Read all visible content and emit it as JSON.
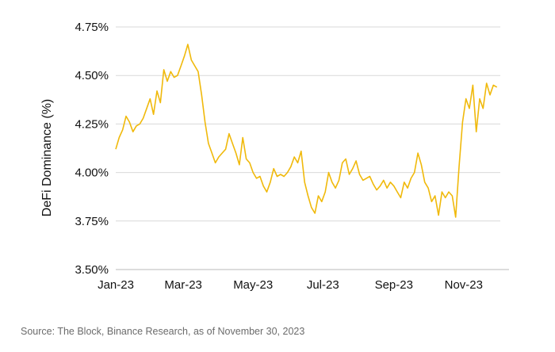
{
  "chart_data": {
    "type": "line",
    "ylabel": "DeFi Dominance (%)",
    "xlabel": "",
    "title": "",
    "ylim": [
      3.5,
      4.75
    ],
    "yticks": [
      "3.50%",
      "3.75%",
      "4.00%",
      "4.25%",
      "4.50%",
      "4.75%"
    ],
    "ytick_values": [
      3.5,
      3.75,
      4.0,
      4.25,
      4.5,
      4.75
    ],
    "xlim": [
      "2023-01-01",
      "2023-12-03"
    ],
    "xticks": [
      "Jan-23",
      "Mar-23",
      "May-23",
      "Jul-23",
      "Sep-23",
      "Nov-23"
    ],
    "xtick_dates": [
      "2023-01-01",
      "2023-03-01",
      "2023-05-01",
      "2023-07-01",
      "2023-09-01",
      "2023-11-01"
    ],
    "grid": "horizontal",
    "legend": "none",
    "series": [
      {
        "color": "#F0B90B",
        "points": [
          [
            "2023-01-01",
            4.12
          ],
          [
            "2023-01-04",
            4.18
          ],
          [
            "2023-01-07",
            4.22
          ],
          [
            "2023-01-10",
            4.29
          ],
          [
            "2023-01-13",
            4.26
          ],
          [
            "2023-01-16",
            4.21
          ],
          [
            "2023-01-19",
            4.24
          ],
          [
            "2023-01-22",
            4.25
          ],
          [
            "2023-01-25",
            4.28
          ],
          [
            "2023-01-28",
            4.33
          ],
          [
            "2023-01-31",
            4.38
          ],
          [
            "2023-02-03",
            4.3
          ],
          [
            "2023-02-06",
            4.42
          ],
          [
            "2023-02-09",
            4.36
          ],
          [
            "2023-02-12",
            4.53
          ],
          [
            "2023-02-15",
            4.47
          ],
          [
            "2023-02-18",
            4.52
          ],
          [
            "2023-02-21",
            4.49
          ],
          [
            "2023-02-24",
            4.5
          ],
          [
            "2023-02-27",
            4.55
          ],
          [
            "2023-03-02",
            4.6
          ],
          [
            "2023-03-05",
            4.66
          ],
          [
            "2023-03-08",
            4.58
          ],
          [
            "2023-03-11",
            4.55
          ],
          [
            "2023-03-14",
            4.52
          ],
          [
            "2023-03-17",
            4.4
          ],
          [
            "2023-03-20",
            4.26
          ],
          [
            "2023-03-23",
            4.15
          ],
          [
            "2023-03-26",
            4.1
          ],
          [
            "2023-03-29",
            4.05
          ],
          [
            "2023-04-01",
            4.08
          ],
          [
            "2023-04-04",
            4.1
          ],
          [
            "2023-04-07",
            4.12
          ],
          [
            "2023-04-10",
            4.2
          ],
          [
            "2023-04-13",
            4.15
          ],
          [
            "2023-04-16",
            4.1
          ],
          [
            "2023-04-19",
            4.04
          ],
          [
            "2023-04-22",
            4.18
          ],
          [
            "2023-04-25",
            4.07
          ],
          [
            "2023-04-28",
            4.05
          ],
          [
            "2023-05-01",
            4.0
          ],
          [
            "2023-05-04",
            3.97
          ],
          [
            "2023-05-07",
            3.98
          ],
          [
            "2023-05-10",
            3.93
          ],
          [
            "2023-05-13",
            3.9
          ],
          [
            "2023-05-16",
            3.95
          ],
          [
            "2023-05-19",
            4.02
          ],
          [
            "2023-05-22",
            3.98
          ],
          [
            "2023-05-25",
            3.99
          ],
          [
            "2023-05-28",
            3.98
          ],
          [
            "2023-05-31",
            4.0
          ],
          [
            "2023-06-03",
            4.03
          ],
          [
            "2023-06-06",
            4.08
          ],
          [
            "2023-06-09",
            4.05
          ],
          [
            "2023-06-12",
            4.11
          ],
          [
            "2023-06-15",
            3.95
          ],
          [
            "2023-06-18",
            3.88
          ],
          [
            "2023-06-21",
            3.82
          ],
          [
            "2023-06-24",
            3.79
          ],
          [
            "2023-06-27",
            3.88
          ],
          [
            "2023-06-30",
            3.85
          ],
          [
            "2023-07-03",
            3.9
          ],
          [
            "2023-07-06",
            4.0
          ],
          [
            "2023-07-09",
            3.95
          ],
          [
            "2023-07-12",
            3.92
          ],
          [
            "2023-07-15",
            3.96
          ],
          [
            "2023-07-18",
            4.05
          ],
          [
            "2023-07-21",
            4.07
          ],
          [
            "2023-07-24",
            3.99
          ],
          [
            "2023-07-27",
            4.02
          ],
          [
            "2023-07-30",
            4.06
          ],
          [
            "2023-08-02",
            3.99
          ],
          [
            "2023-08-05",
            3.96
          ],
          [
            "2023-08-08",
            3.97
          ],
          [
            "2023-08-11",
            3.98
          ],
          [
            "2023-08-14",
            3.94
          ],
          [
            "2023-08-17",
            3.91
          ],
          [
            "2023-08-20",
            3.93
          ],
          [
            "2023-08-23",
            3.96
          ],
          [
            "2023-08-26",
            3.92
          ],
          [
            "2023-08-29",
            3.95
          ],
          [
            "2023-09-01",
            3.93
          ],
          [
            "2023-09-04",
            3.9
          ],
          [
            "2023-09-07",
            3.87
          ],
          [
            "2023-09-10",
            3.95
          ],
          [
            "2023-09-13",
            3.92
          ],
          [
            "2023-09-16",
            3.97
          ],
          [
            "2023-09-19",
            4.0
          ],
          [
            "2023-09-22",
            4.1
          ],
          [
            "2023-09-25",
            4.04
          ],
          [
            "2023-09-28",
            3.95
          ],
          [
            "2023-10-01",
            3.92
          ],
          [
            "2023-10-04",
            3.85
          ],
          [
            "2023-10-07",
            3.88
          ],
          [
            "2023-10-10",
            3.78
          ],
          [
            "2023-10-13",
            3.9
          ],
          [
            "2023-10-16",
            3.87
          ],
          [
            "2023-10-19",
            3.9
          ],
          [
            "2023-10-22",
            3.88
          ],
          [
            "2023-10-25",
            3.77
          ],
          [
            "2023-10-28",
            4.03
          ],
          [
            "2023-10-31",
            4.26
          ],
          [
            "2023-11-03",
            4.38
          ],
          [
            "2023-11-06",
            4.33
          ],
          [
            "2023-11-09",
            4.45
          ],
          [
            "2023-11-12",
            4.21
          ],
          [
            "2023-11-15",
            4.38
          ],
          [
            "2023-11-18",
            4.33
          ],
          [
            "2023-11-21",
            4.46
          ],
          [
            "2023-11-24",
            4.4
          ],
          [
            "2023-11-27",
            4.45
          ],
          [
            "2023-11-30",
            4.44
          ]
        ]
      }
    ]
  },
  "footer": {
    "source": "Source: The Block, Binance Research, as of November 30, 2023"
  }
}
